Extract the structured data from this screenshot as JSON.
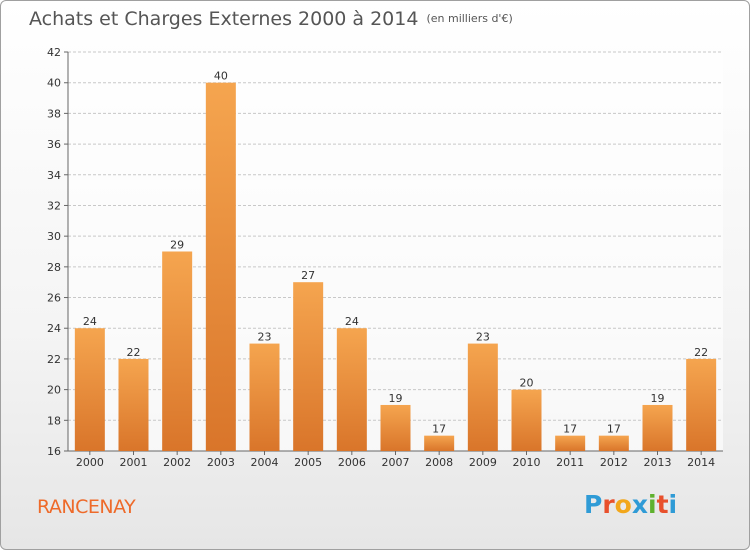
{
  "title": "Achats et Charges Externes 2000 à 2014",
  "subtitle": "(en milliers d'€)",
  "commune": "RANCENAY",
  "logo": {
    "letters": [
      "P",
      "r",
      "o",
      "x",
      "i",
      "t",
      "i"
    ],
    "colors": [
      "#2f9bd6",
      "#e8502c",
      "#f2a71b",
      "#2f9bd6",
      "#5fb12e",
      "#e8502c",
      "#2f9bd6"
    ]
  },
  "colors": {
    "bar_light": "#f5a54f",
    "bar_dark": "#d9752a",
    "grid": "#c8c8c8"
  },
  "chart_data": {
    "type": "bar",
    "categories": [
      "2000",
      "2001",
      "2002",
      "2003",
      "2004",
      "2005",
      "2006",
      "2007",
      "2008",
      "2009",
      "2010",
      "2011",
      "2012",
      "2013",
      "2014"
    ],
    "values": [
      24,
      22,
      29,
      40,
      23,
      27,
      24,
      19,
      17,
      23,
      20,
      17,
      17,
      19,
      22
    ],
    "ylim": [
      16,
      42
    ],
    "yticks": [
      16,
      18,
      20,
      22,
      24,
      26,
      28,
      30,
      32,
      34,
      36,
      38,
      40,
      42
    ],
    "grid": true
  }
}
